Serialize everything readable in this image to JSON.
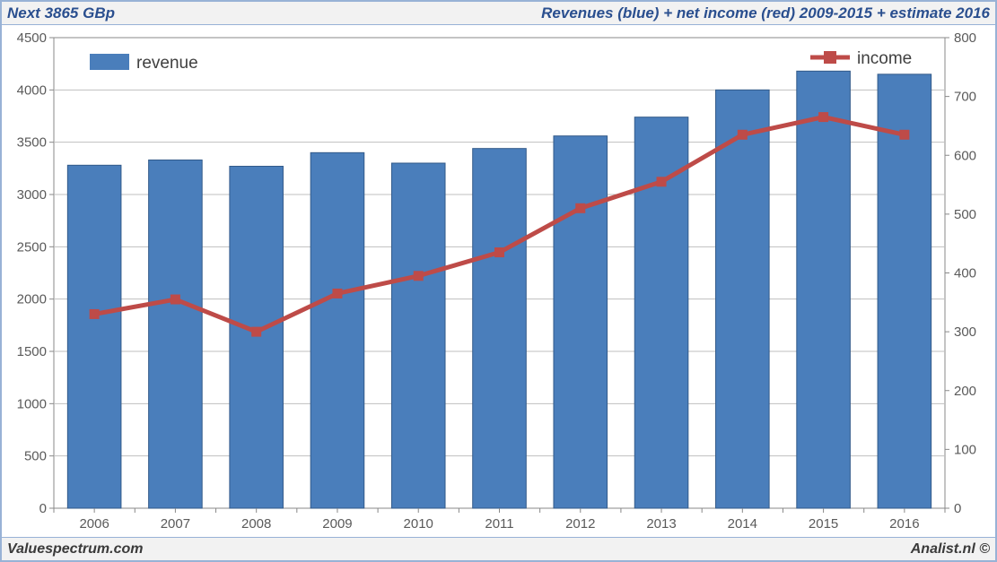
{
  "header": {
    "left": "Next 3865 GBp",
    "right": "Revenues (blue) + net income (red) 2009-2015 + estimate 2016"
  },
  "footer": {
    "left": "Valuespectrum.com",
    "right": "Analist.nl ©"
  },
  "chart": {
    "type": "bar+line",
    "background_color": "#ffffff",
    "plot_border_color": "#888888",
    "grid_color": "#bfbfbf",
    "tick_font_size": 15,
    "tick_color": "#5a5a5a",
    "categories": [
      "2006",
      "2007",
      "2008",
      "2009",
      "2010",
      "2011",
      "2012",
      "2013",
      "2014",
      "2015",
      "2016"
    ],
    "y_left": {
      "min": 0,
      "max": 4500,
      "step": 500
    },
    "y_right": {
      "min": 0,
      "max": 800,
      "step": 100
    },
    "bars": {
      "name": "revenue",
      "color": "#4a7ebb",
      "border_color": "#325a8a",
      "values": [
        3280,
        3330,
        3270,
        3400,
        3300,
        3440,
        3560,
        3740,
        4000,
        4180,
        4150
      ]
    },
    "line": {
      "name": "income",
      "color": "#be4b48",
      "marker": "square",
      "marker_size": 10,
      "line_width": 5,
      "values": [
        330,
        355,
        300,
        365,
        395,
        435,
        510,
        555,
        635,
        665,
        635
      ]
    },
    "legend": {
      "revenue_label": "revenue",
      "income_label": "income",
      "revenue_swatch_color": "#4a7ebb",
      "font_size": 19
    },
    "bar_width_ratio": 0.66
  }
}
